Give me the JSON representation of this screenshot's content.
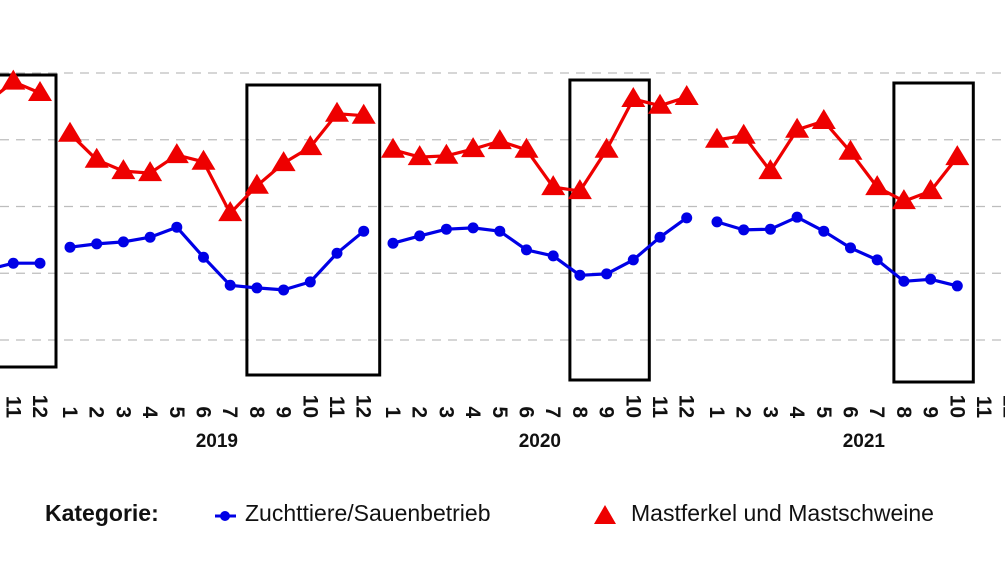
{
  "chart_data": {
    "type": "line",
    "title": "",
    "xlabel": "",
    "ylabel": "",
    "grid": true,
    "legend_placement": "bottom",
    "legend_title": "Kategorie:",
    "x_tick_labels": [
      "1",
      "2",
      "3",
      "4",
      "5",
      "6",
      "7",
      "8",
      "9",
      "10",
      "11",
      "12"
    ],
    "years": [
      "2018",
      "2019",
      "2020",
      "2021"
    ],
    "year_labels_shown": [
      "2019",
      "2020",
      "2021"
    ],
    "series": [
      {
        "name": "Zuchttiere/Sauenbetrieb",
        "color": "#0000e6",
        "marker": "circle",
        "data": {
          "2018": {
            "10": 1.05,
            "11": 1.15,
            "12": 1.15
          },
          "2019": [
            1.39,
            1.44,
            1.47,
            1.54,
            1.69,
            1.24,
            0.82,
            0.78,
            0.75,
            0.87,
            1.3,
            1.63
          ],
          "2020": [
            1.45,
            1.56,
            1.66,
            1.68,
            1.63,
            1.35,
            1.26,
            0.97,
            0.99,
            1.2,
            1.54,
            1.83
          ],
          "2021": [
            1.77,
            1.65,
            1.66,
            1.84,
            1.63,
            1.38,
            1.2,
            0.88,
            0.91,
            0.81
          ]
        }
      },
      {
        "name": "Mastferkel und Mastschweine",
        "color": "#ee0000",
        "marker": "triangle",
        "data": {
          "2018": {
            "10": 3.55,
            "11": 3.87,
            "12": 3.7
          },
          "2019": [
            3.09,
            2.7,
            2.53,
            2.5,
            2.77,
            2.67,
            1.9,
            2.31,
            2.65,
            2.89,
            3.39,
            3.36
          ],
          "2020": [
            2.85,
            2.74,
            2.76,
            2.86,
            2.98,
            2.85,
            2.29,
            2.23,
            2.85,
            3.61,
            3.51,
            3.64
          ],
          "2021": [
            3.0,
            3.06,
            2.53,
            3.15,
            3.28,
            2.82,
            2.29,
            2.08,
            2.23,
            2.74
          ]
        }
      }
    ],
    "highlight_boxes": [
      {
        "year": "2018",
        "from_month": 9,
        "to_month": 12
      },
      {
        "year": "2019",
        "from_month": 8,
        "to_month": 12
      },
      {
        "year": "2020",
        "from_month": 8,
        "to_month": 10
      },
      {
        "year": "2021",
        "from_month": 8,
        "to_month": 10
      }
    ]
  }
}
